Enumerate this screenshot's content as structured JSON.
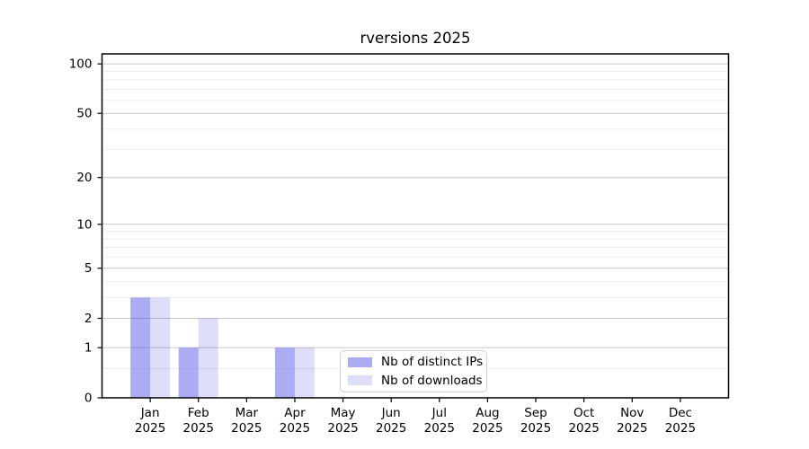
{
  "chart_data": {
    "type": "bar",
    "title": "rversions 2025",
    "categories": [
      {
        "month": "Jan",
        "year": "2025"
      },
      {
        "month": "Feb",
        "year": "2025"
      },
      {
        "month": "Mar",
        "year": "2025"
      },
      {
        "month": "Apr",
        "year": "2025"
      },
      {
        "month": "May",
        "year": "2025"
      },
      {
        "month": "Jun",
        "year": "2025"
      },
      {
        "month": "Jul",
        "year": "2025"
      },
      {
        "month": "Aug",
        "year": "2025"
      },
      {
        "month": "Sep",
        "year": "2025"
      },
      {
        "month": "Oct",
        "year": "2025"
      },
      {
        "month": "Nov",
        "year": "2025"
      },
      {
        "month": "Dec",
        "year": "2025"
      }
    ],
    "series": [
      {
        "name": "Nb of distinct IPs",
        "color": "rgba(70,70,230,0.45)",
        "values": [
          3,
          1,
          0,
          1,
          0,
          0,
          0,
          0,
          0,
          0,
          0,
          0
        ]
      },
      {
        "name": "Nb of downloads",
        "color": "rgba(70,70,230,0.18)",
        "values": [
          3,
          2,
          0,
          1,
          0,
          0,
          0,
          0,
          0,
          0,
          0,
          0
        ]
      }
    ],
    "y_axis": {
      "scale": "log1p",
      "tick_values": [
        0,
        1,
        2,
        5,
        10,
        20,
        50,
        100
      ],
      "tick_labels": [
        "0",
        "1",
        "2",
        "5",
        "10",
        "20",
        "50",
        "100"
      ],
      "minor_gridlines": [
        0.5,
        3,
        4,
        6,
        7,
        8,
        9,
        30,
        40,
        60,
        70,
        80,
        90
      ],
      "range_max": 115
    },
    "legend": {
      "position": "lower center"
    },
    "grid": true,
    "colors": {
      "major_grid": "#c6c6c6",
      "minor_grid": "#ededed",
      "axis": "#000000",
      "background": "#ffffff"
    }
  }
}
